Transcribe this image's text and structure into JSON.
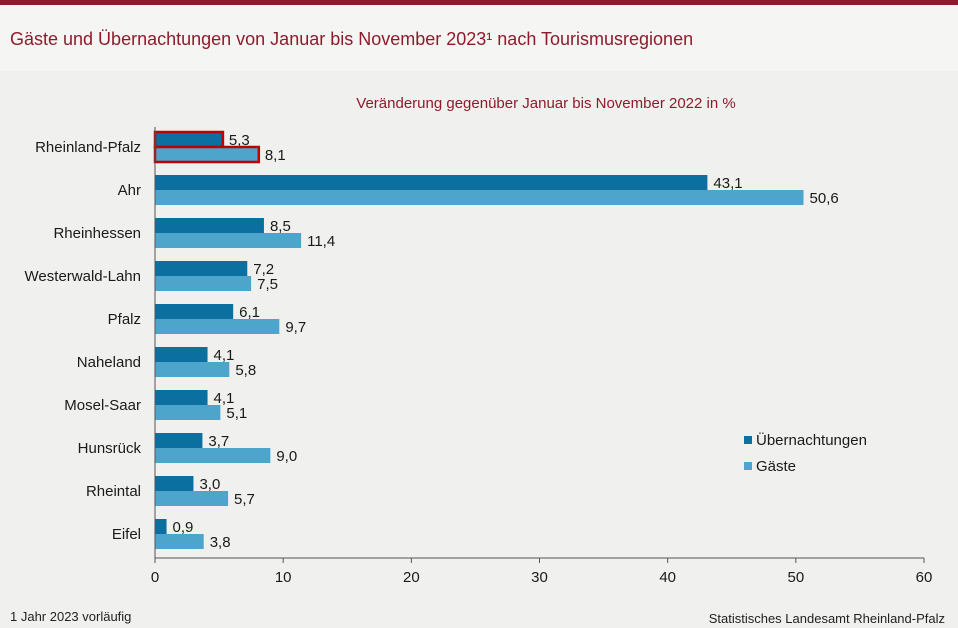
{
  "header": {
    "title": "Gäste und Übernachtungen von Januar bis November 2023¹ nach Tourismusregionen"
  },
  "footer": {
    "footnote": "1 Jahr 2023 vorläufig",
    "source": "Statistisches Landesamt Rheinland-Pfalz"
  },
  "colors": {
    "uebernachtungen": "#0b6fa0",
    "gaeste": "#4ea5cb",
    "highlight": "#c00000",
    "accent": "#8e1b2c"
  },
  "chart_data": {
    "type": "bar",
    "orientation": "horizontal",
    "title": "Veränderung gegenüber Januar bis November 2022 in %",
    "categories": [
      "Rheinland-Pfalz",
      "Ahr",
      "Rheinhessen",
      "Westerwald-Lahn",
      "Pfalz",
      "Naheland",
      "Mosel-Saar",
      "Hunsrück",
      "Rheintal",
      "Eifel"
    ],
    "highlight_category": "Rheinland-Pfalz",
    "series": [
      {
        "name": "Übernachtungen",
        "values": [
          5.3,
          43.1,
          8.5,
          7.2,
          6.1,
          4.1,
          4.1,
          3.7,
          3.0,
          0.9
        ],
        "labels": [
          "5,3",
          "43,1",
          "8,5",
          "7,2",
          "6,1",
          "4,1",
          "4,1",
          "3,7",
          "3,0",
          "0,9"
        ]
      },
      {
        "name": "Gäste",
        "values": [
          8.1,
          50.6,
          11.4,
          7.5,
          9.7,
          5.8,
          5.1,
          9.0,
          5.7,
          3.8
        ],
        "labels": [
          "8,1",
          "50,6",
          "11,4",
          "7,5",
          "9,7",
          "5,8",
          "5,1",
          "9,0",
          "5,7",
          "3,8"
        ]
      }
    ],
    "xlim": [
      0,
      60
    ],
    "xticks": [
      0,
      10,
      20,
      30,
      40,
      50,
      60
    ],
    "xtick_labels": [
      "0",
      "10",
      "20",
      "30",
      "40",
      "50",
      "60"
    ],
    "grid": false,
    "legend": "right"
  }
}
